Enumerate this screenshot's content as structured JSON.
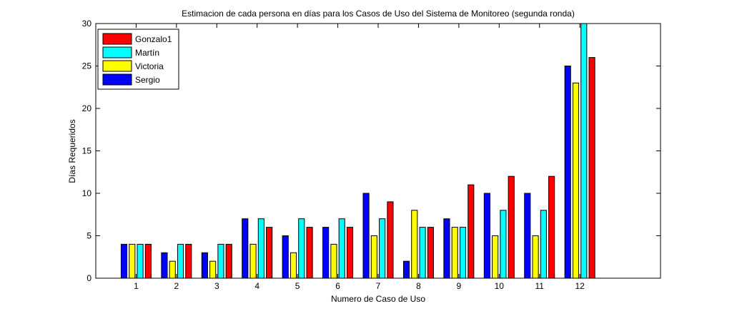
{
  "chart_data": {
    "type": "bar",
    "title": "Estimacion de cada persona en días para los Casos de Uso del Sistema de Monitoreo (segunda ronda)",
    "xlabel": "Numero de Caso de Uso",
    "ylabel": "Días Requeridos",
    "categories": [
      "1",
      "2",
      "3",
      "4",
      "5",
      "6",
      "7",
      "8",
      "9",
      "10",
      "11",
      "12"
    ],
    "xlim": [
      0,
      14
    ],
    "ylim": [
      0,
      30
    ],
    "yticks": [
      0,
      5,
      10,
      15,
      20,
      25,
      30
    ],
    "grid": false,
    "legend_position": "top-left",
    "series": [
      {
        "name": "Sergio",
        "color": "#0000ff",
        "values": [
          4,
          3,
          3,
          7,
          5,
          6,
          10,
          2,
          7,
          10,
          10,
          25
        ]
      },
      {
        "name": "Victoria",
        "color": "#ffff00",
        "values": [
          4,
          2,
          2,
          4,
          3,
          4,
          5,
          8,
          6,
          5,
          5,
          23
        ]
      },
      {
        "name": "Martín",
        "color": "#00ffff",
        "values": [
          4,
          4,
          4,
          7,
          7,
          7,
          7,
          6,
          6,
          8,
          8,
          30
        ]
      },
      {
        "name": "Gonzalo1",
        "color": "#ff0000",
        "values": [
          4,
          4,
          4,
          6,
          6,
          6,
          9,
          6,
          11,
          12,
          12,
          26
        ]
      }
    ],
    "legend_order": [
      "Gonzalo1",
      "Martín",
      "Victoria",
      "Sergio"
    ]
  }
}
